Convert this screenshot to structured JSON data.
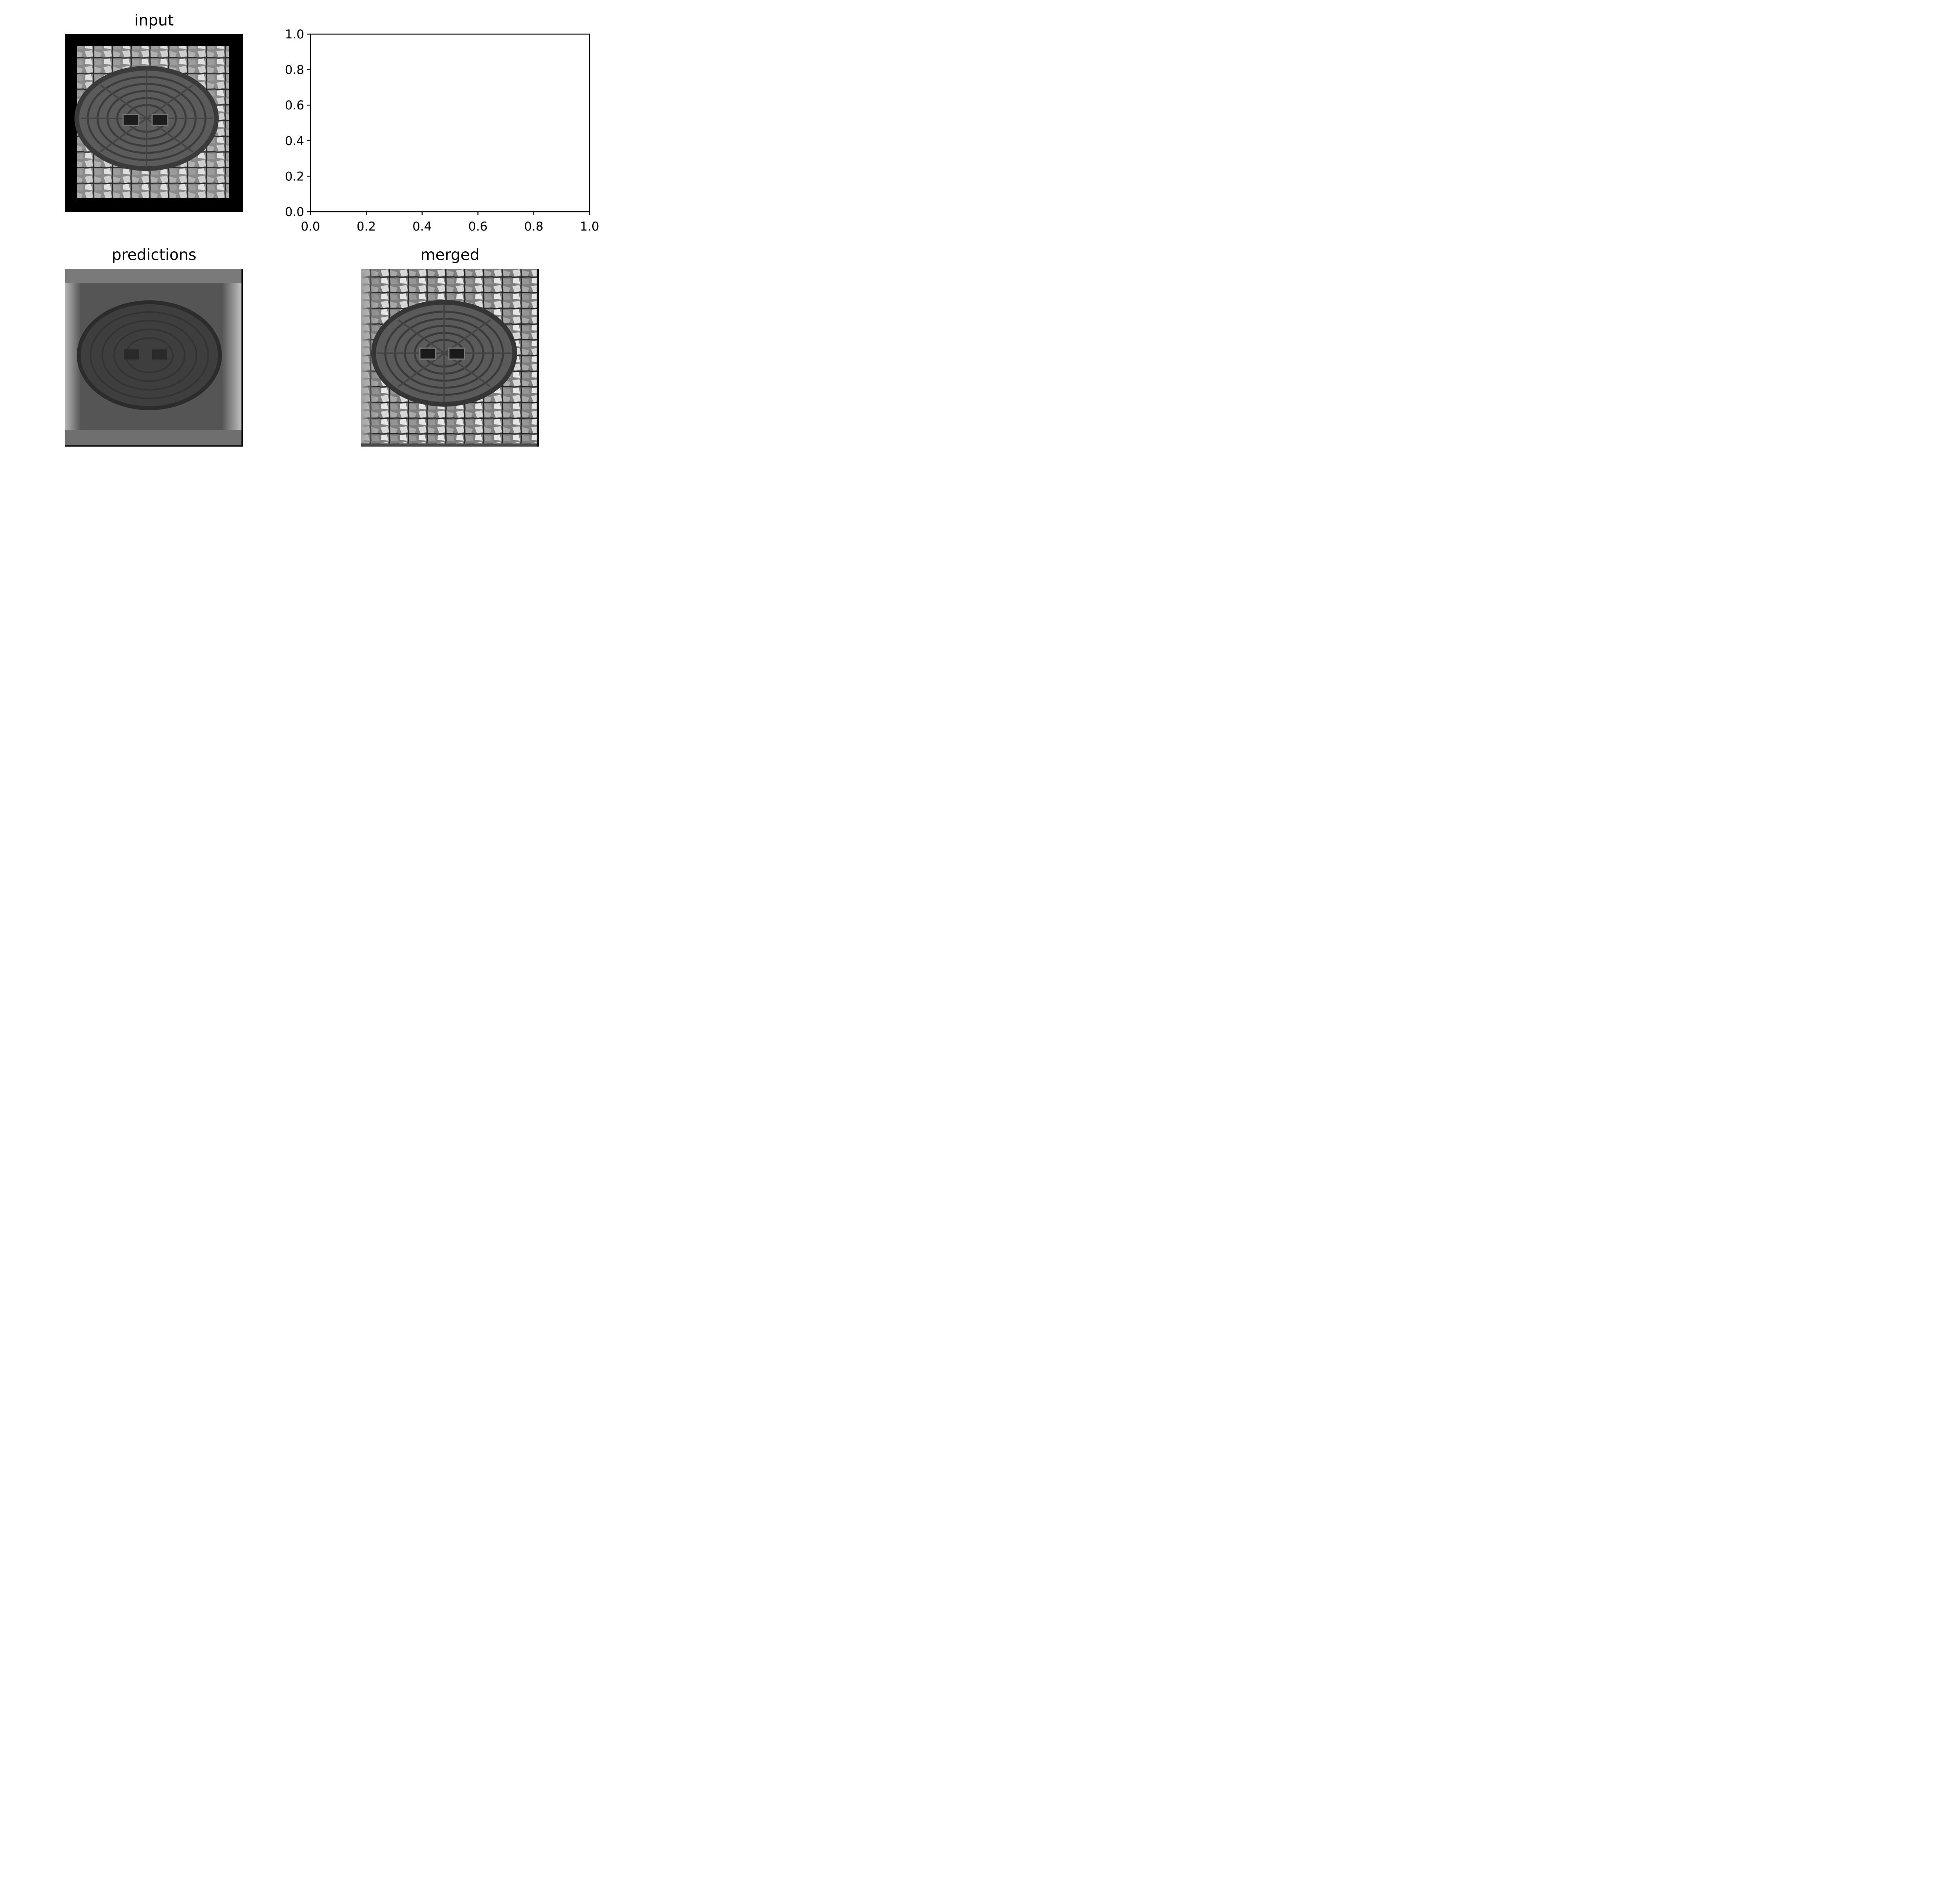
{
  "panels": {
    "input": {
      "title": "input"
    },
    "predictions": {
      "title": "predictions"
    },
    "merged": {
      "title": "merged"
    }
  },
  "colors": {
    "background": "#ffffff",
    "border": "#000000",
    "image_dark": "#2a2a2a",
    "image_mid": "#6e6e6e",
    "image_light": "#c8c8c8"
  },
  "chart_data": [
    {
      "type": "scatter",
      "title": "",
      "xlabel": "",
      "ylabel": "",
      "xlim": [
        0.0,
        1.0
      ],
      "ylim": [
        0.0,
        1.0
      ],
      "x_ticks": [
        "0.0",
        "0.2",
        "0.4",
        "0.6",
        "0.8",
        "1.0"
      ],
      "y_ticks": [
        "0.0",
        "0.2",
        "0.4",
        "0.6",
        "0.8",
        "1.0"
      ],
      "series": [],
      "grid": false
    }
  ]
}
